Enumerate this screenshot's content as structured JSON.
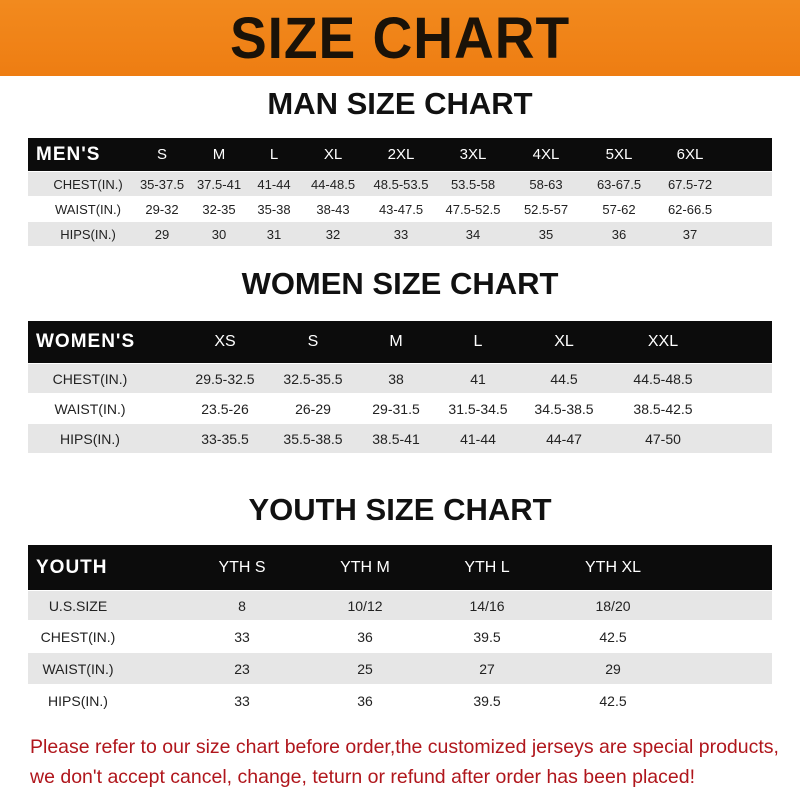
{
  "title": "SIZE CHART",
  "men": {
    "title": "MAN SIZE CHART",
    "header": [
      "MEN'S",
      "S",
      "M",
      "L",
      "XL",
      "2XL",
      "3XL",
      "4XL",
      "5XL",
      "6XL"
    ],
    "rows": [
      [
        "CHEST(IN.)",
        "35-37.5",
        "37.5-41",
        "41-44",
        "44-48.5",
        "48.5-53.5",
        "53.5-58",
        "58-63",
        "63-67.5",
        "67.5-72"
      ],
      [
        "WAIST(IN.)",
        "29-32",
        "32-35",
        "35-38",
        "38-43",
        "43-47.5",
        "47.5-52.5",
        "52.5-57",
        "57-62",
        "62-66.5"
      ],
      [
        "HIPS(IN.)",
        "29",
        "30",
        "31",
        "32",
        "33",
        "34",
        "35",
        "36",
        "37"
      ]
    ]
  },
  "women": {
    "title": "WOMEN SIZE CHART",
    "header": [
      "WOMEN'S",
      "XS",
      "S",
      "M",
      "L",
      "XL",
      "XXL"
    ],
    "rows": [
      [
        "CHEST(IN.)",
        "29.5-32.5",
        "32.5-35.5",
        "38",
        "41",
        "44.5",
        "44.5-48.5"
      ],
      [
        "WAIST(IN.)",
        "23.5-26",
        "26-29",
        "29-31.5",
        "31.5-34.5",
        "34.5-38.5",
        "38.5-42.5"
      ],
      [
        "HIPS(IN.)",
        "33-35.5",
        "35.5-38.5",
        "38.5-41",
        "41-44",
        "44-47",
        "47-50"
      ]
    ]
  },
  "youth": {
    "title": "YOUTH SIZE CHART",
    "header": [
      "YOUTH",
      "YTH S",
      "YTH M",
      "YTH L",
      "YTH XL"
    ],
    "rows": [
      [
        "U.S.SIZE",
        "8",
        "10/12",
        "14/16",
        "18/20"
      ],
      [
        "CHEST(IN.)",
        "33",
        "36",
        "39.5",
        "42.5"
      ],
      [
        "WAIST(IN.)",
        "23",
        "25",
        "27",
        "29"
      ],
      [
        "HIPS(IN.)",
        "33",
        "36",
        "39.5",
        "42.5"
      ]
    ]
  },
  "notice": [
    "Please refer to our size chart before order,the customized jerseys are special products,",
    "we don't accept cancel, change, teturn or refund after order has been placed!"
  ]
}
